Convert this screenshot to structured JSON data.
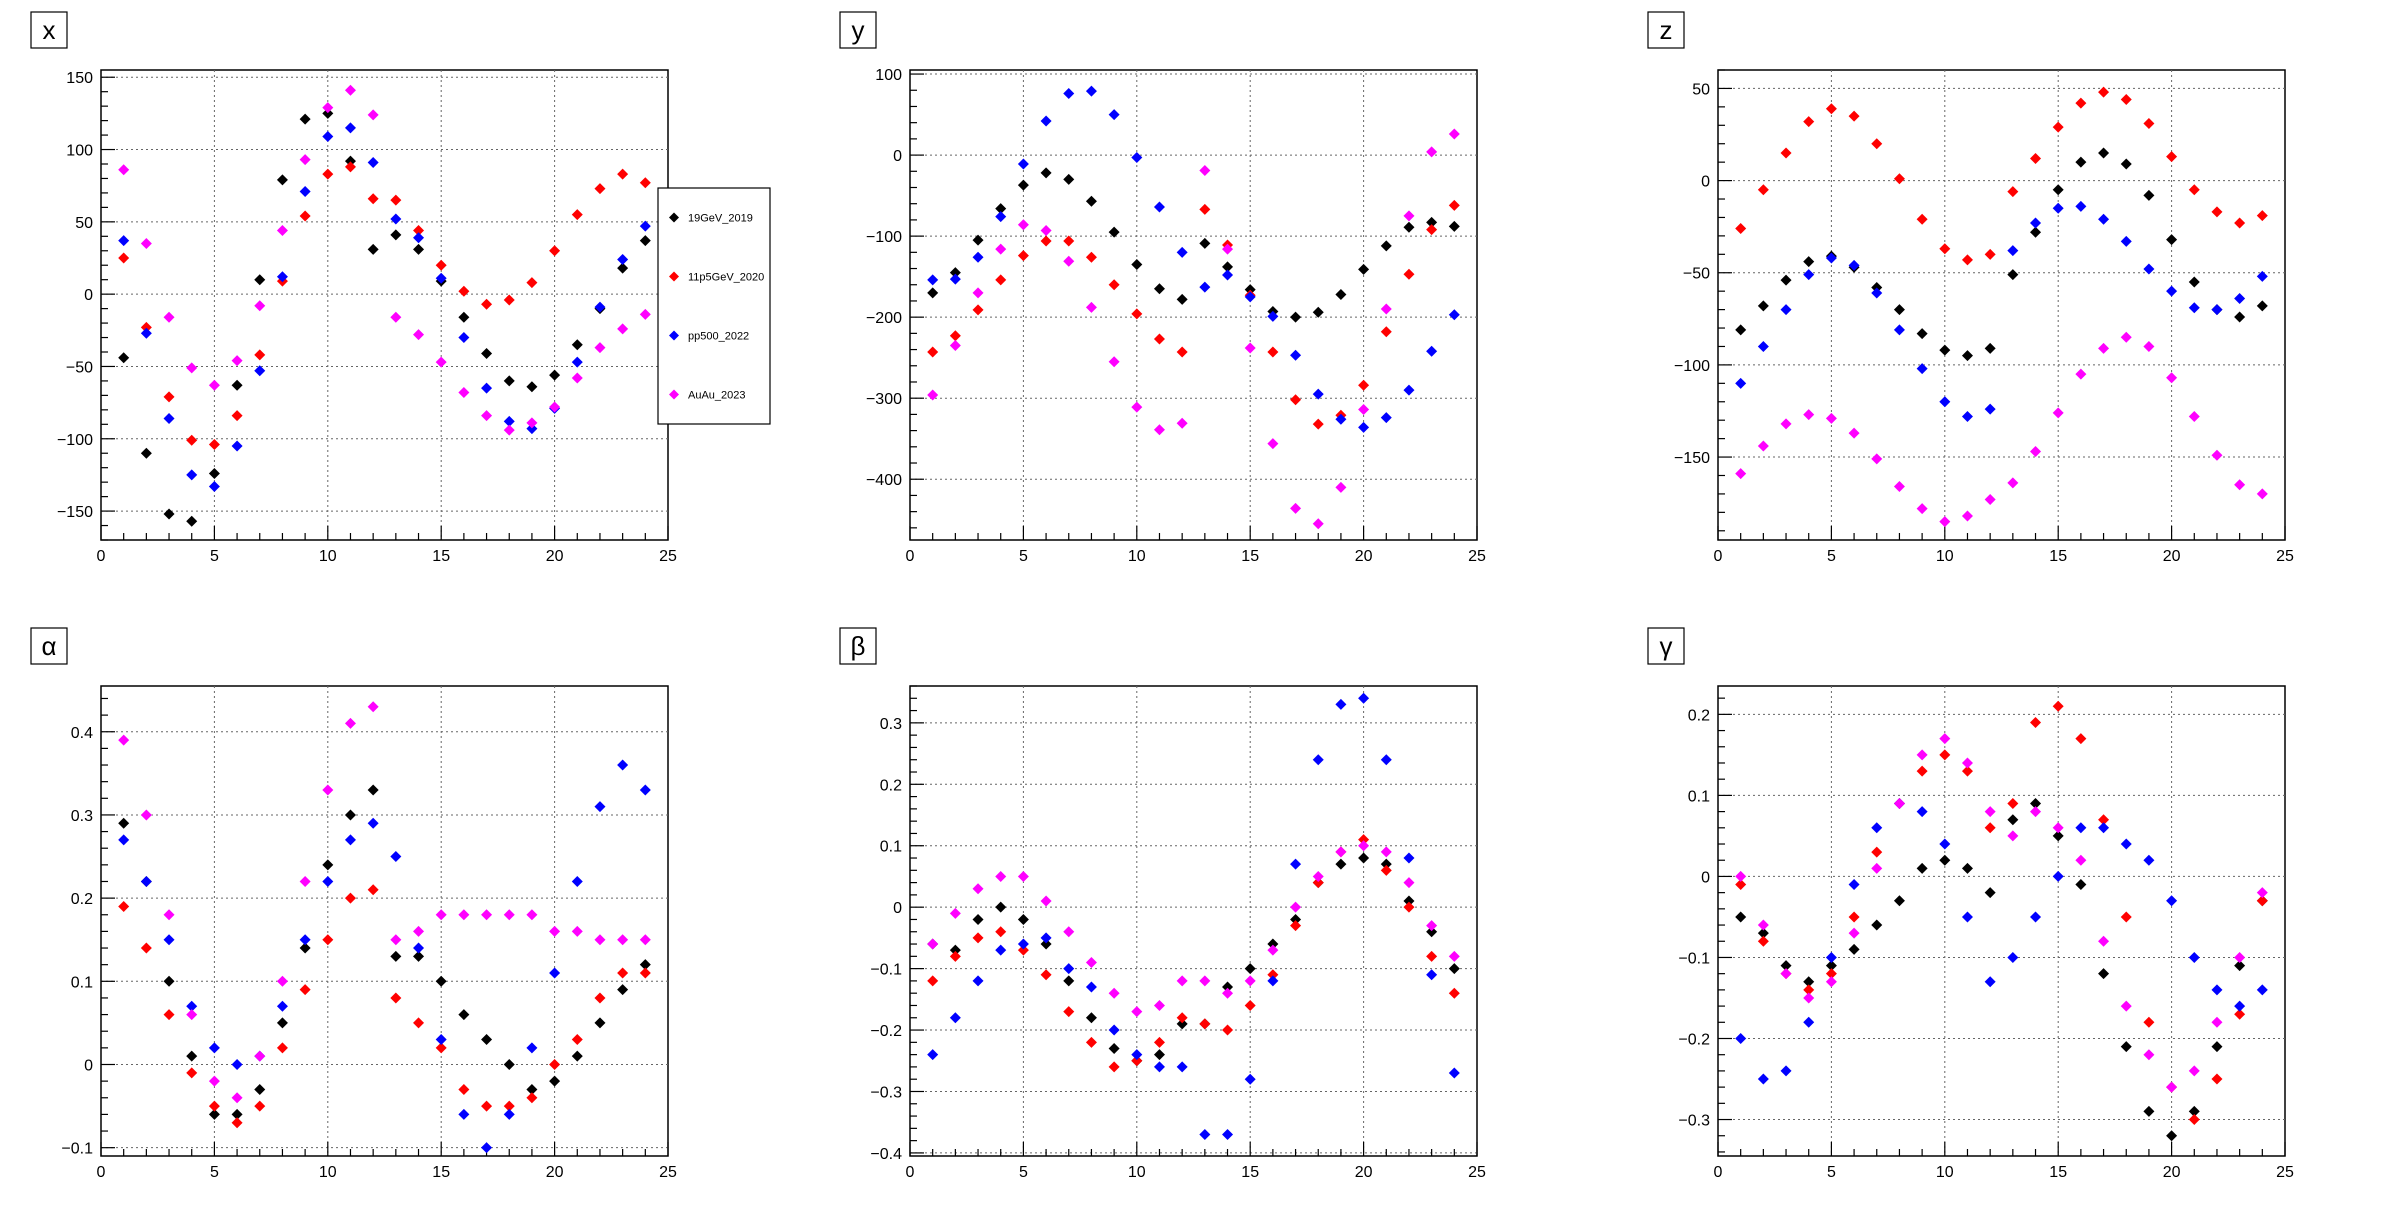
{
  "colors": {
    "19GeV_2019": "#000000",
    "11p5GeV_2020": "#ff0000",
    "pp500_2022": "#0000ff",
    "AuAu_2023": "#ff00ff"
  },
  "legend": {
    "placement": "right of panel x",
    "entries": [
      "19GeV_2019",
      "11p5GeV_2020",
      "pp500_2022",
      "AuAu_2023"
    ]
  },
  "chart_data": [
    {
      "type": "scatter",
      "title": "x",
      "xlim": [
        0,
        25
      ],
      "ylim": [
        -170,
        155
      ],
      "xticks": [
        0,
        5,
        10,
        15,
        20,
        25
      ],
      "yticks": [
        -150,
        -100,
        -50,
        0,
        50,
        100,
        150
      ],
      "grid": true,
      "x": [
        1,
        2,
        3,
        4,
        5,
        6,
        7,
        8,
        9,
        10,
        11,
        12,
        13,
        14,
        15,
        16,
        17,
        18,
        19,
        20,
        21,
        22,
        23,
        24
      ],
      "series": [
        {
          "name": "19GeV_2019",
          "values": [
            -44,
            -110,
            -152,
            -157,
            -124,
            -63,
            10,
            79,
            121,
            125,
            92,
            31,
            41,
            31,
            9,
            -16,
            -41,
            -60,
            -64,
            -56,
            -35,
            -10,
            18,
            37
          ]
        },
        {
          "name": "11p5GeV_2020",
          "values": [
            25,
            -23,
            -71,
            -101,
            -104,
            -84,
            -42,
            9,
            54,
            83,
            88,
            66,
            65,
            44,
            20,
            2,
            -7,
            -4,
            8,
            30,
            55,
            73,
            83,
            77
          ]
        },
        {
          "name": "pp500_2022",
          "values": [
            37,
            -27,
            -86,
            -125,
            -133,
            -105,
            -53,
            12,
            71,
            109,
            115,
            91,
            52,
            39,
            11,
            -30,
            -65,
            -88,
            -93,
            -79,
            -47,
            -9,
            24,
            47
          ]
        },
        {
          "name": "AuAu_2023",
          "values": [
            86,
            35,
            -16,
            -51,
            -63,
            -46,
            -8,
            44,
            93,
            129,
            141,
            124,
            -16,
            -28,
            -47,
            -68,
            -84,
            -94,
            -89,
            -78,
            -58,
            -37,
            -24,
            -14
          ]
        }
      ]
    },
    {
      "type": "scatter",
      "title": "y",
      "xlim": [
        0,
        25
      ],
      "ylim": [
        -475,
        105
      ],
      "xticks": [
        0,
        5,
        10,
        15,
        20,
        25
      ],
      "yticks": [
        -400,
        -300,
        -200,
        -100,
        0,
        100
      ],
      "grid": true,
      "x": [
        1,
        2,
        3,
        4,
        5,
        6,
        7,
        8,
        9,
        10,
        11,
        12,
        13,
        14,
        15,
        16,
        17,
        18,
        19,
        20,
        21,
        22,
        23,
        24
      ],
      "series": [
        {
          "name": "19GeV_2019",
          "values": [
            -170,
            -145,
            -105,
            -66,
            -37,
            -22,
            -30,
            -57,
            -95,
            -135,
            -165,
            -178,
            -109,
            -138,
            -166,
            -193,
            -200,
            -194,
            -172,
            -141,
            -112,
            -89,
            -83,
            -88
          ]
        },
        {
          "name": "11p5GeV_2020",
          "values": [
            -243,
            -223,
            -191,
            -154,
            -124,
            -106,
            -106,
            -126,
            -160,
            -196,
            -227,
            -243,
            -67,
            -111,
            -173,
            -243,
            -302,
            -332,
            -321,
            -284,
            -218,
            -147,
            -92,
            -62
          ]
        },
        {
          "name": "pp500_2022",
          "values": [
            -154,
            -153,
            -126,
            -76,
            -11,
            42,
            76,
            79,
            50,
            -3,
            -64,
            -120,
            -163,
            -148,
            -175,
            -199,
            -247,
            -295,
            -326,
            -336,
            -324,
            -290,
            -242,
            -197
          ]
        },
        {
          "name": "AuAu_2023",
          "values": [
            -296,
            -235,
            -170,
            -116,
            -86,
            -93,
            -131,
            -188,
            -255,
            -311,
            -339,
            -331,
            -19,
            -116,
            -238,
            -356,
            -436,
            -455,
            -410,
            -314,
            -190,
            -75,
            4,
            26
          ]
        }
      ]
    },
    {
      "type": "scatter",
      "title": "z",
      "xlim": [
        0,
        25
      ],
      "ylim": [
        -195,
        60
      ],
      "xticks": [
        0,
        5,
        10,
        15,
        20,
        25
      ],
      "yticks": [
        -150,
        -100,
        -50,
        0,
        50
      ],
      "grid": true,
      "x": [
        1,
        2,
        3,
        4,
        5,
        6,
        7,
        8,
        9,
        10,
        11,
        12,
        13,
        14,
        15,
        16,
        17,
        18,
        19,
        20,
        21,
        22,
        23,
        24
      ],
      "series": [
        {
          "name": "19GeV_2019",
          "values": [
            -81,
            -68,
            -54,
            -44,
            -41,
            -47,
            -58,
            -70,
            -83,
            -92,
            -95,
            -91,
            -51,
            -28,
            -5,
            10,
            15,
            9,
            -8,
            -32,
            -55,
            -70,
            -74,
            -68
          ]
        },
        {
          "name": "11p5GeV_2020",
          "values": [
            -26,
            -5,
            15,
            32,
            39,
            35,
            20,
            1,
            -21,
            -37,
            -43,
            -40,
            -6,
            12,
            29,
            42,
            48,
            44,
            31,
            13,
            -5,
            -17,
            -23,
            -19
          ]
        },
        {
          "name": "pp500_2022",
          "values": [
            -110,
            -90,
            -70,
            -51,
            -42,
            -46,
            -61,
            -81,
            -102,
            -120,
            -128,
            -124,
            -38,
            -23,
            -15,
            -14,
            -21,
            -33,
            -48,
            -60,
            -69,
            -70,
            -64,
            -52
          ]
        },
        {
          "name": "AuAu_2023",
          "values": [
            -159,
            -144,
            -132,
            -127,
            -129,
            -137,
            -151,
            -166,
            -178,
            -185,
            -182,
            -173,
            -164,
            -147,
            -126,
            -105,
            -91,
            -85,
            -90,
            -107,
            -128,
            -149,
            -165,
            -170
          ]
        }
      ]
    },
    {
      "type": "scatter",
      "title": "α",
      "xlim": [
        0,
        25
      ],
      "ylim": [
        -0.11,
        0.455
      ],
      "xticks": [
        0,
        5,
        10,
        15,
        20,
        25
      ],
      "yticks": [
        -0.1,
        0,
        0.1,
        0.2,
        0.3,
        0.4
      ],
      "grid": true,
      "x": [
        1,
        2,
        3,
        4,
        5,
        6,
        7,
        8,
        9,
        10,
        11,
        12,
        13,
        14,
        15,
        16,
        17,
        18,
        19,
        20,
        21,
        22,
        23,
        24
      ],
      "series": [
        {
          "name": "19GeV_2019",
          "values": [
            0.29,
            0.22,
            0.1,
            0.01,
            -0.06,
            -0.06,
            -0.03,
            0.05,
            0.14,
            0.24,
            0.3,
            0.33,
            0.13,
            0.13,
            0.1,
            0.06,
            0.03,
            0.0,
            -0.03,
            -0.02,
            0.01,
            0.05,
            0.09,
            0.12
          ]
        },
        {
          "name": "11p5GeV_2020",
          "values": [
            0.19,
            0.14,
            0.06,
            -0.01,
            -0.05,
            -0.07,
            -0.05,
            0.02,
            0.09,
            0.15,
            0.2,
            0.21,
            0.08,
            0.05,
            0.02,
            -0.03,
            -0.05,
            -0.05,
            -0.04,
            0.0,
            0.03,
            0.08,
            0.11,
            0.11
          ]
        },
        {
          "name": "pp500_2022",
          "values": [
            0.27,
            0.22,
            0.15,
            0.07,
            0.02,
            0.0,
            0.01,
            0.07,
            0.15,
            0.22,
            0.27,
            0.29,
            0.25,
            0.14,
            0.03,
            -0.06,
            -0.1,
            -0.06,
            0.02,
            0.11,
            0.22,
            0.31,
            0.36,
            0.33
          ]
        },
        {
          "name": "AuAu_2023",
          "values": [
            0.39,
            0.3,
            0.18,
            0.06,
            -0.02,
            -0.04,
            0.01,
            0.1,
            0.22,
            0.33,
            0.41,
            0.43,
            0.15,
            0.16,
            0.18,
            0.18,
            0.18,
            0.18,
            0.18,
            0.16,
            0.16,
            0.15,
            0.15,
            0.15
          ]
        }
      ]
    },
    {
      "type": "scatter",
      "title": "β",
      "xlim": [
        0,
        25
      ],
      "ylim": [
        -0.405,
        0.36
      ],
      "xticks": [
        0,
        5,
        10,
        15,
        20,
        25
      ],
      "yticks": [
        -0.4,
        -0.3,
        -0.2,
        -0.1,
        0,
        0.1,
        0.2,
        0.3
      ],
      "grid": true,
      "x": [
        1,
        2,
        3,
        4,
        5,
        6,
        7,
        8,
        9,
        10,
        11,
        12,
        13,
        14,
        15,
        16,
        17,
        18,
        19,
        20,
        21,
        22,
        23,
        24
      ],
      "series": [
        {
          "name": "19GeV_2019",
          "values": [
            -0.06,
            -0.07,
            -0.02,
            0.0,
            -0.02,
            -0.06,
            -0.12,
            -0.18,
            -0.23,
            -0.25,
            -0.24,
            -0.19,
            -0.19,
            -0.13,
            -0.1,
            -0.06,
            -0.02,
            0.04,
            0.07,
            0.08,
            0.07,
            0.01,
            -0.04,
            -0.1
          ]
        },
        {
          "name": "11p5GeV_2020",
          "values": [
            -0.12,
            -0.08,
            -0.05,
            -0.04,
            -0.07,
            -0.11,
            -0.17,
            -0.22,
            -0.26,
            -0.25,
            -0.22,
            -0.18,
            -0.19,
            -0.2,
            -0.16,
            -0.11,
            -0.03,
            0.04,
            0.09,
            0.11,
            0.06,
            0.0,
            -0.08,
            -0.14
          ]
        },
        {
          "name": "pp500_2022",
          "values": [
            -0.24,
            -0.18,
            -0.12,
            -0.07,
            -0.06,
            -0.05,
            -0.1,
            -0.13,
            -0.2,
            -0.24,
            -0.26,
            -0.26,
            -0.37,
            -0.37,
            -0.28,
            -0.12,
            0.07,
            0.24,
            0.33,
            0.34,
            0.24,
            0.08,
            -0.11,
            -0.27
          ]
        },
        {
          "name": "AuAu_2023",
          "values": [
            -0.06,
            -0.01,
            0.03,
            0.05,
            0.05,
            0.01,
            -0.04,
            -0.09,
            -0.14,
            -0.17,
            -0.16,
            -0.12,
            -0.12,
            -0.14,
            -0.12,
            -0.07,
            0.0,
            0.05,
            0.09,
            0.1,
            0.09,
            0.04,
            -0.03,
            -0.08
          ]
        }
      ]
    },
    {
      "type": "scatter",
      "title": "γ",
      "xlim": [
        0,
        25
      ],
      "ylim": [
        -0.345,
        0.235
      ],
      "xticks": [
        0,
        5,
        10,
        15,
        20,
        25
      ],
      "yticks": [
        -0.3,
        -0.2,
        -0.1,
        0,
        0.1,
        0.2
      ],
      "grid": true,
      "x": [
        1,
        2,
        3,
        4,
        5,
        6,
        7,
        8,
        9,
        10,
        11,
        12,
        13,
        14,
        15,
        16,
        17,
        18,
        19,
        20,
        21,
        22,
        23,
        24
      ],
      "series": [
        {
          "name": "19GeV_2019",
          "values": [
            -0.05,
            -0.07,
            -0.11,
            -0.13,
            -0.11,
            -0.09,
            -0.06,
            -0.03,
            0.01,
            0.02,
            0.01,
            -0.02,
            0.07,
            0.09,
            0.05,
            -0.01,
            -0.12,
            -0.21,
            -0.29,
            -0.32,
            -0.29,
            -0.21,
            -0.11,
            -0.03
          ]
        },
        {
          "name": "11p5GeV_2020",
          "values": [
            -0.01,
            -0.08,
            -0.12,
            -0.14,
            -0.12,
            -0.05,
            0.03,
            0.09,
            0.13,
            0.15,
            0.13,
            0.06,
            0.09,
            0.19,
            0.21,
            0.17,
            0.07,
            -0.05,
            -0.18,
            -0.26,
            -0.3,
            -0.25,
            -0.17,
            -0.03
          ]
        },
        {
          "name": "pp500_2022",
          "values": [
            -0.2,
            -0.25,
            -0.24,
            -0.18,
            -0.1,
            -0.01,
            0.06,
            0.09,
            0.08,
            0.04,
            -0.05,
            -0.13,
            -0.1,
            -0.05,
            0.0,
            0.06,
            0.06,
            0.04,
            0.02,
            -0.03,
            -0.1,
            -0.14,
            -0.16,
            -0.14
          ]
        },
        {
          "name": "AuAu_2023",
          "values": [
            0.0,
            -0.06,
            -0.12,
            -0.15,
            -0.13,
            -0.07,
            0.01,
            0.09,
            0.15,
            0.17,
            0.14,
            0.08,
            0.05,
            0.08,
            0.06,
            0.02,
            -0.08,
            -0.16,
            -0.22,
            -0.26,
            -0.24,
            -0.18,
            -0.1,
            -0.02
          ]
        }
      ]
    }
  ]
}
